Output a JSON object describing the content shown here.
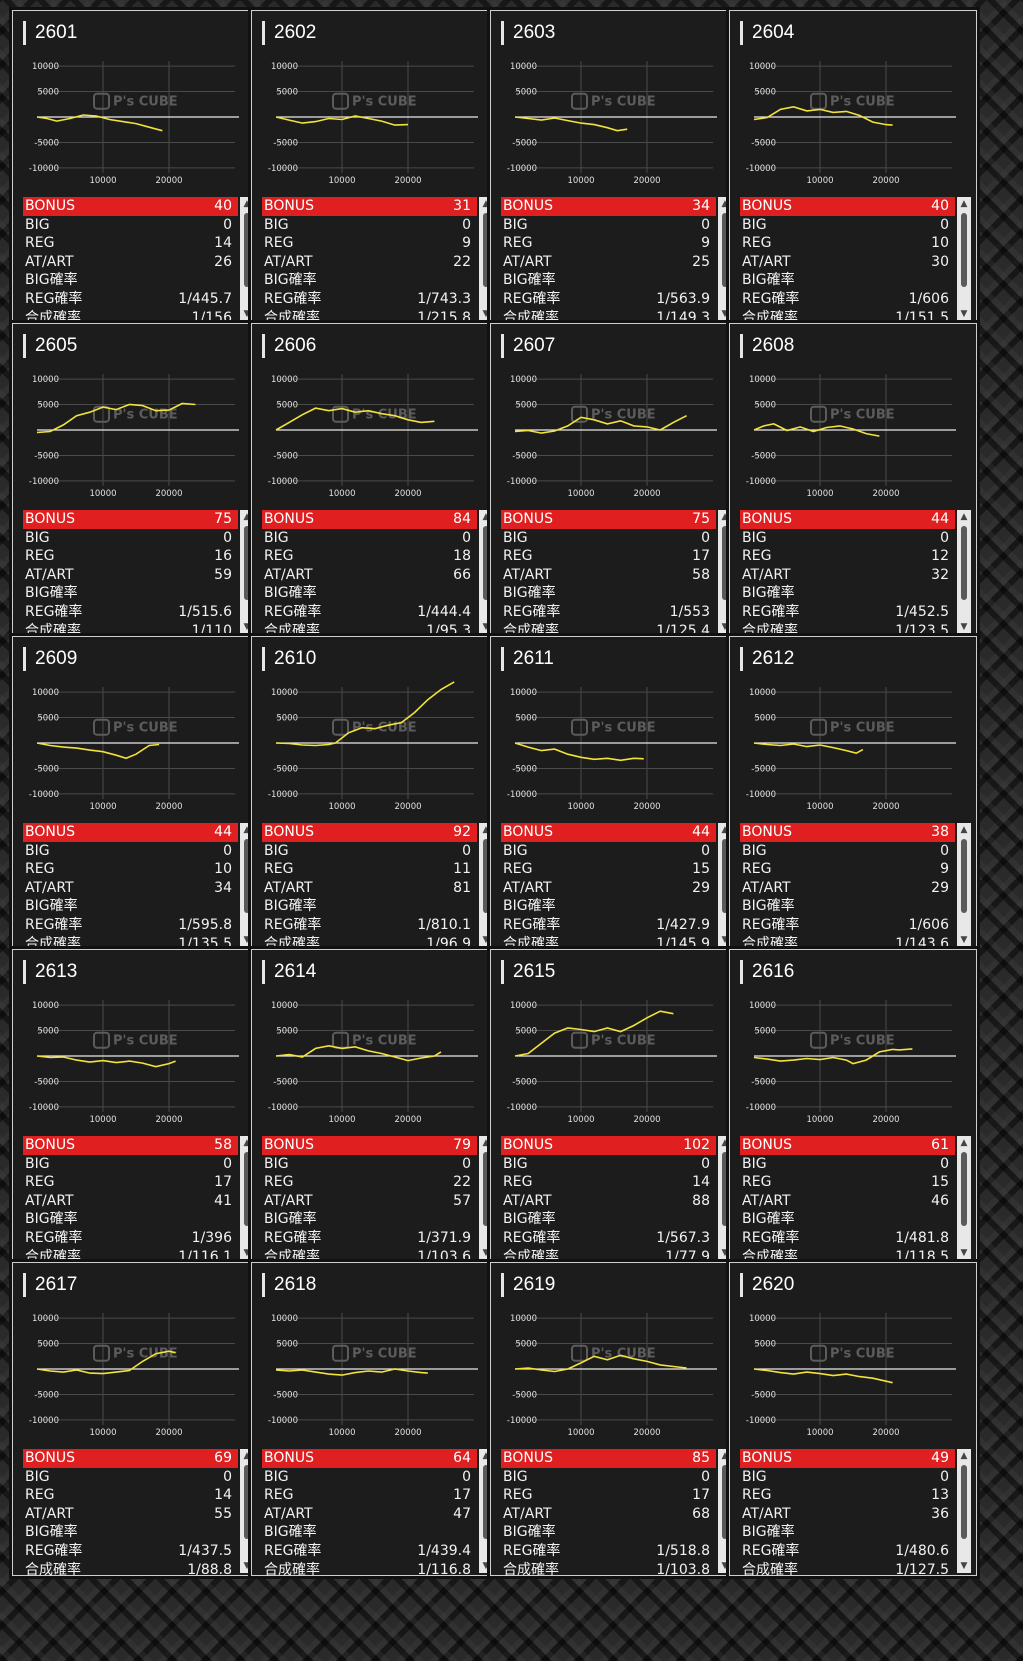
{
  "labels": {
    "bonus": "BONUS",
    "big": "BIG",
    "reg": "REG",
    "at": "AT/ART",
    "big_rate": "BIG確率",
    "reg_rate": "REG確率",
    "combined_rate": "合成確率"
  },
  "watermark": "P's CUBE",
  "colors": {
    "bonus_bar": "#e02020",
    "graph_line": "#f2e23a",
    "card_bg": "#1c1c1c"
  },
  "axis": {
    "y_ticks": [
      "10000",
      "5000",
      "-5000",
      "-10000"
    ],
    "x_ticks": [
      "10000",
      "20000"
    ]
  },
  "machines": [
    {
      "id": "2601",
      "bonus": "40",
      "big": "0",
      "reg": "14",
      "at": "26",
      "big_rate": "",
      "reg_rate": "1/445.7",
      "combined_rate": "1/156",
      "graph": [
        [
          0,
          0
        ],
        [
          1500,
          -300
        ],
        [
          3000,
          -800
        ],
        [
          5000,
          -300
        ],
        [
          7000,
          400
        ],
        [
          9000,
          200
        ],
        [
          11000,
          -500
        ],
        [
          13000,
          -900
        ],
        [
          15000,
          -1300
        ],
        [
          17000,
          -2000
        ],
        [
          19000,
          -2700
        ]
      ]
    },
    {
      "id": "2602",
      "bonus": "31",
      "big": "0",
      "reg": "9",
      "at": "22",
      "big_rate": "",
      "reg_rate": "1/743.3",
      "combined_rate": "1/215.8",
      "graph": [
        [
          0,
          0
        ],
        [
          2000,
          -600
        ],
        [
          4000,
          -1200
        ],
        [
          6000,
          -900
        ],
        [
          8000,
          -300
        ],
        [
          10000,
          -500
        ],
        [
          12000,
          200
        ],
        [
          14000,
          -300
        ],
        [
          16000,
          -800
        ],
        [
          18000,
          -1600
        ],
        [
          20000,
          -1500
        ]
      ]
    },
    {
      "id": "2603",
      "bonus": "34",
      "big": "0",
      "reg": "9",
      "at": "25",
      "big_rate": "",
      "reg_rate": "1/563.9",
      "combined_rate": "1/149.3",
      "graph": [
        [
          0,
          0
        ],
        [
          2000,
          -300
        ],
        [
          4000,
          -600
        ],
        [
          6000,
          -200
        ],
        [
          8000,
          -700
        ],
        [
          10000,
          -1200
        ],
        [
          12000,
          -1500
        ],
        [
          14000,
          -2100
        ],
        [
          15500,
          -2700
        ],
        [
          17000,
          -2400
        ]
      ]
    },
    {
      "id": "2604",
      "bonus": "40",
      "big": "0",
      "reg": "10",
      "at": "30",
      "big_rate": "",
      "reg_rate": "1/606",
      "combined_rate": "1/151.5",
      "graph": [
        [
          0,
          -500
        ],
        [
          2000,
          -100
        ],
        [
          4000,
          1500
        ],
        [
          6000,
          2000
        ],
        [
          8000,
          1200
        ],
        [
          10000,
          1500
        ],
        [
          12000,
          900
        ],
        [
          14000,
          1100
        ],
        [
          16000,
          300
        ],
        [
          18000,
          -1000
        ],
        [
          20000,
          -1500
        ],
        [
          21000,
          -1600
        ]
      ]
    },
    {
      "id": "2605",
      "bonus": "75",
      "big": "0",
      "reg": "16",
      "at": "59",
      "big_rate": "",
      "reg_rate": "1/515.6",
      "combined_rate": "1/110",
      "graph": [
        [
          0,
          -500
        ],
        [
          2000,
          -300
        ],
        [
          4000,
          1000
        ],
        [
          6000,
          2800
        ],
        [
          8000,
          3500
        ],
        [
          10000,
          4500
        ],
        [
          12000,
          4000
        ],
        [
          14000,
          5000
        ],
        [
          16000,
          4800
        ],
        [
          18000,
          3800
        ],
        [
          20000,
          3900
        ],
        [
          22000,
          5200
        ],
        [
          24000,
          5000
        ]
      ]
    },
    {
      "id": "2606",
      "bonus": "84",
      "big": "0",
      "reg": "18",
      "at": "66",
      "big_rate": "",
      "reg_rate": "1/444.4",
      "combined_rate": "1/95.3",
      "graph": [
        [
          0,
          0
        ],
        [
          2000,
          1500
        ],
        [
          4000,
          3000
        ],
        [
          6000,
          4300
        ],
        [
          8000,
          3800
        ],
        [
          10000,
          4200
        ],
        [
          12000,
          3500
        ],
        [
          14000,
          3800
        ],
        [
          16000,
          3200
        ],
        [
          18000,
          2800
        ],
        [
          20000,
          2000
        ],
        [
          22000,
          1500
        ],
        [
          24000,
          1700
        ]
      ]
    },
    {
      "id": "2607",
      "bonus": "75",
      "big": "0",
      "reg": "17",
      "at": "58",
      "big_rate": "",
      "reg_rate": "1/553",
      "combined_rate": "1/125.4",
      "graph": [
        [
          0,
          -300
        ],
        [
          2000,
          -100
        ],
        [
          4000,
          -600
        ],
        [
          6000,
          -200
        ],
        [
          8000,
          800
        ],
        [
          10000,
          2500
        ],
        [
          12000,
          2000
        ],
        [
          14000,
          1200
        ],
        [
          16000,
          1800
        ],
        [
          18000,
          800
        ],
        [
          20000,
          600
        ],
        [
          22000,
          0
        ],
        [
          24000,
          1500
        ],
        [
          26000,
          2800
        ]
      ]
    },
    {
      "id": "2608",
      "bonus": "44",
      "big": "0",
      "reg": "12",
      "at": "32",
      "big_rate": "",
      "reg_rate": "1/452.5",
      "combined_rate": "1/123.5",
      "graph": [
        [
          0,
          0
        ],
        [
          1500,
          800
        ],
        [
          3000,
          1200
        ],
        [
          5000,
          -100
        ],
        [
          7000,
          600
        ],
        [
          9000,
          -300
        ],
        [
          11000,
          500
        ],
        [
          13000,
          800
        ],
        [
          15000,
          200
        ],
        [
          17000,
          -700
        ],
        [
          19000,
          -1200
        ]
      ]
    },
    {
      "id": "2609",
      "bonus": "44",
      "big": "0",
      "reg": "10",
      "at": "34",
      "big_rate": "",
      "reg_rate": "1/595.8",
      "combined_rate": "1/135.5",
      "graph": [
        [
          0,
          0
        ],
        [
          2000,
          -500
        ],
        [
          4000,
          -800
        ],
        [
          6000,
          -1000
        ],
        [
          8000,
          -1400
        ],
        [
          10000,
          -1700
        ],
        [
          12000,
          -2400
        ],
        [
          13500,
          -3000
        ],
        [
          15000,
          -2200
        ],
        [
          17000,
          -500
        ],
        [
          18500,
          -300
        ]
      ]
    },
    {
      "id": "2610",
      "bonus": "92",
      "big": "0",
      "reg": "11",
      "at": "81",
      "big_rate": "",
      "reg_rate": "1/810.1",
      "combined_rate": "1/96.9",
      "graph": [
        [
          0,
          0
        ],
        [
          2000,
          -100
        ],
        [
          4000,
          -400
        ],
        [
          6000,
          -500
        ],
        [
          8000,
          -300
        ],
        [
          9000,
          0
        ],
        [
          11000,
          2000
        ],
        [
          13000,
          3000
        ],
        [
          15000,
          2800
        ],
        [
          17000,
          3500
        ],
        [
          19000,
          4000
        ],
        [
          21000,
          6000
        ],
        [
          23000,
          8500
        ],
        [
          25000,
          10500
        ],
        [
          27000,
          12000
        ]
      ]
    },
    {
      "id": "2611",
      "bonus": "44",
      "big": "0",
      "reg": "15",
      "at": "29",
      "big_rate": "",
      "reg_rate": "1/427.9",
      "combined_rate": "1/145.9",
      "graph": [
        [
          0,
          0
        ],
        [
          2000,
          -800
        ],
        [
          4000,
          -1500
        ],
        [
          6000,
          -1200
        ],
        [
          8000,
          -2200
        ],
        [
          10000,
          -2800
        ],
        [
          12000,
          -3200
        ],
        [
          14000,
          -3000
        ],
        [
          16000,
          -3400
        ],
        [
          18000,
          -3000
        ],
        [
          19500,
          -3100
        ]
      ]
    },
    {
      "id": "2612",
      "bonus": "38",
      "big": "0",
      "reg": "9",
      "at": "29",
      "big_rate": "",
      "reg_rate": "1/606",
      "combined_rate": "1/143.6",
      "graph": [
        [
          0,
          0
        ],
        [
          2000,
          -300
        ],
        [
          4000,
          -500
        ],
        [
          6000,
          -200
        ],
        [
          8000,
          -700
        ],
        [
          10000,
          -400
        ],
        [
          12000,
          -900
        ],
        [
          14000,
          -1500
        ],
        [
          15500,
          -2000
        ],
        [
          16500,
          -1300
        ]
      ]
    },
    {
      "id": "2613",
      "bonus": "58",
      "big": "0",
      "reg": "17",
      "at": "41",
      "big_rate": "",
      "reg_rate": "1/396",
      "combined_rate": "1/116.1",
      "graph": [
        [
          0,
          0
        ],
        [
          2000,
          -300
        ],
        [
          4000,
          -200
        ],
        [
          6000,
          -800
        ],
        [
          8000,
          -1200
        ],
        [
          10000,
          -900
        ],
        [
          12000,
          -1300
        ],
        [
          14000,
          -1000
        ],
        [
          16000,
          -1400
        ],
        [
          18000,
          -2100
        ],
        [
          20000,
          -1500
        ],
        [
          21000,
          -1000
        ]
      ]
    },
    {
      "id": "2614",
      "bonus": "79",
      "big": "0",
      "reg": "22",
      "at": "57",
      "big_rate": "",
      "reg_rate": "1/371.9",
      "combined_rate": "1/103.6",
      "graph": [
        [
          0,
          0
        ],
        [
          2000,
          300
        ],
        [
          4000,
          -200
        ],
        [
          6000,
          1500
        ],
        [
          8000,
          2000
        ],
        [
          10000,
          1500
        ],
        [
          12000,
          1800
        ],
        [
          14000,
          1000
        ],
        [
          16000,
          500
        ],
        [
          18000,
          -200
        ],
        [
          20000,
          -900
        ],
        [
          22000,
          -400
        ],
        [
          24000,
          0
        ],
        [
          25000,
          800
        ]
      ]
    },
    {
      "id": "2615",
      "bonus": "102",
      "big": "0",
      "reg": "14",
      "at": "88",
      "big_rate": "",
      "reg_rate": "1/567.3",
      "combined_rate": "1/77.9",
      "graph": [
        [
          0,
          0
        ],
        [
          2000,
          500
        ],
        [
          4000,
          2500
        ],
        [
          6000,
          4500
        ],
        [
          8000,
          5500
        ],
        [
          10000,
          5200
        ],
        [
          12000,
          4800
        ],
        [
          14000,
          5500
        ],
        [
          16000,
          4800
        ],
        [
          18000,
          6000
        ],
        [
          20000,
          7500
        ],
        [
          22000,
          8800
        ],
        [
          24000,
          8300
        ]
      ]
    },
    {
      "id": "2616",
      "bonus": "61",
      "big": "0",
      "reg": "15",
      "at": "46",
      "big_rate": "",
      "reg_rate": "1/481.8",
      "combined_rate": "1/118.5",
      "graph": [
        [
          0,
          -300
        ],
        [
          2000,
          -600
        ],
        [
          4000,
          -1000
        ],
        [
          6000,
          -800
        ],
        [
          8000,
          -500
        ],
        [
          10000,
          -700
        ],
        [
          12000,
          -300
        ],
        [
          14000,
          -800
        ],
        [
          15000,
          -1500
        ],
        [
          17000,
          -800
        ],
        [
          19000,
          800
        ],
        [
          21000,
          1300
        ],
        [
          22000,
          1200
        ],
        [
          24000,
          1400
        ]
      ]
    },
    {
      "id": "2617",
      "bonus": "69",
      "big": "0",
      "reg": "14",
      "at": "55",
      "big_rate": "",
      "reg_rate": "1/437.5",
      "combined_rate": "1/88.8",
      "graph": [
        [
          0,
          0
        ],
        [
          2000,
          -400
        ],
        [
          4000,
          -600
        ],
        [
          6000,
          -200
        ],
        [
          8000,
          -800
        ],
        [
          10000,
          -900
        ],
        [
          12000,
          -600
        ],
        [
          14000,
          -300
        ],
        [
          16000,
          1500
        ],
        [
          18000,
          3000
        ],
        [
          20000,
          3500
        ],
        [
          21000,
          3200
        ]
      ]
    },
    {
      "id": "2618",
      "bonus": "64",
      "big": "0",
      "reg": "17",
      "at": "47",
      "big_rate": "",
      "reg_rate": "1/439.4",
      "combined_rate": "1/116.8",
      "graph": [
        [
          0,
          -200
        ],
        [
          2000,
          -400
        ],
        [
          4000,
          -200
        ],
        [
          6000,
          -600
        ],
        [
          8000,
          -1000
        ],
        [
          10000,
          -1200
        ],
        [
          12000,
          -700
        ],
        [
          14000,
          -400
        ],
        [
          16000,
          -600
        ],
        [
          18000,
          0
        ],
        [
          20000,
          -400
        ],
        [
          22000,
          -700
        ],
        [
          23000,
          -800
        ]
      ]
    },
    {
      "id": "2619",
      "bonus": "85",
      "big": "0",
      "reg": "17",
      "at": "68",
      "big_rate": "",
      "reg_rate": "1/518.8",
      "combined_rate": "1/103.8",
      "graph": [
        [
          0,
          0
        ],
        [
          2000,
          200
        ],
        [
          4000,
          -200
        ],
        [
          6000,
          -500
        ],
        [
          8000,
          0
        ],
        [
          10000,
          1200
        ],
        [
          12000,
          2500
        ],
        [
          14000,
          1800
        ],
        [
          16000,
          2700
        ],
        [
          18000,
          2000
        ],
        [
          20000,
          1500
        ],
        [
          22000,
          800
        ],
        [
          24000,
          500
        ],
        [
          26000,
          200
        ]
      ]
    },
    {
      "id": "2620",
      "bonus": "49",
      "big": "0",
      "reg": "13",
      "at": "36",
      "big_rate": "",
      "reg_rate": "1/480.6",
      "combined_rate": "1/127.5",
      "graph": [
        [
          0,
          0
        ],
        [
          2000,
          -300
        ],
        [
          4000,
          -700
        ],
        [
          6000,
          -1000
        ],
        [
          8000,
          -600
        ],
        [
          10000,
          -900
        ],
        [
          12000,
          -1300
        ],
        [
          14000,
          -1000
        ],
        [
          16000,
          -1500
        ],
        [
          18000,
          -1800
        ],
        [
          20000,
          -2400
        ],
        [
          21000,
          -2700
        ]
      ]
    }
  ]
}
